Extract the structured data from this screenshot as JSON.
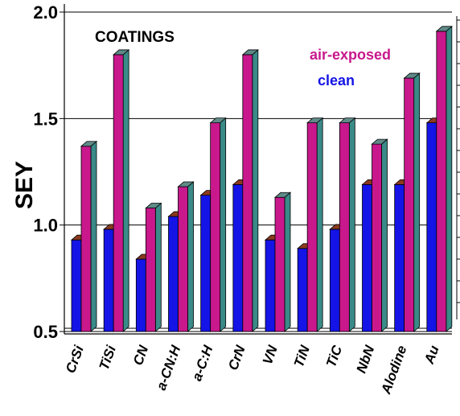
{
  "chart_data": {
    "type": "bar",
    "title": "COATINGS",
    "ylabel": "SEY",
    "xlabel": "",
    "ylim": [
      0.5,
      2.0
    ],
    "yticks": [
      "0.5",
      "1.0",
      "1.5",
      "2.0"
    ],
    "grid": true,
    "legend_placement": "top-right",
    "categories": [
      "CrSi",
      "TiSi",
      "CN",
      "a-CN:H",
      "a-C:H",
      "CrN",
      "VN",
      "TiN",
      "TiC",
      "NbN",
      "Alodine",
      "Au"
    ],
    "series": [
      {
        "name": "clean",
        "color": "#1414e6",
        "values": [
          0.93,
          0.98,
          0.84,
          1.04,
          1.14,
          1.19,
          0.93,
          0.89,
          0.98,
          1.19,
          1.19,
          1.48
        ]
      },
      {
        "name": "air-exposed",
        "color": "#c8188c",
        "values": [
          1.37,
          1.8,
          1.08,
          1.18,
          1.48,
          1.8,
          1.13,
          1.48,
          1.48,
          1.38,
          1.69,
          1.91
        ]
      }
    ]
  }
}
